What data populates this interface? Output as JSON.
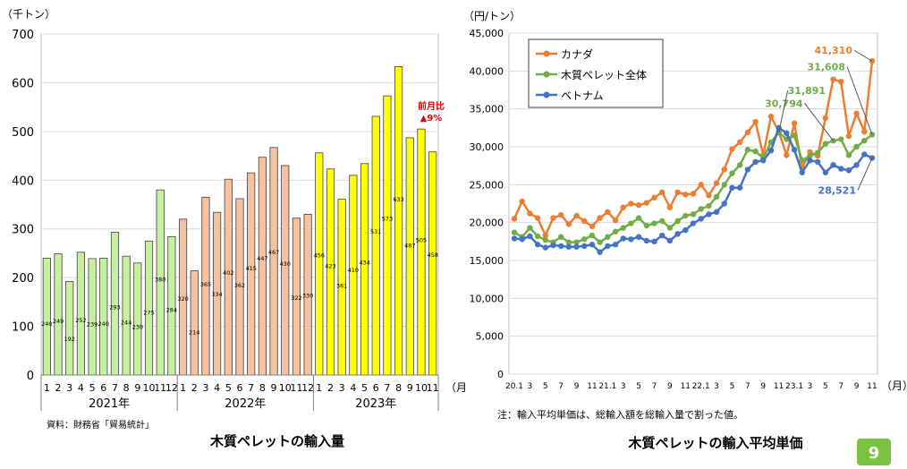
{
  "chart_data": [
    {
      "type": "bar",
      "title": "木質ペレットの輸入量",
      "ylabel": "（千トン）",
      "xlabel": "（月）",
      "ylim": [
        0,
        700
      ],
      "yticks": [
        "0",
        "100",
        "200",
        "300",
        "400",
        "500",
        "600",
        "700"
      ],
      "grid": true,
      "categories": [
        "1",
        "2",
        "3",
        "4",
        "5",
        "6",
        "7",
        "8",
        "9",
        "10",
        "11",
        "12",
        "1",
        "2",
        "3",
        "4",
        "5",
        "6",
        "7",
        "8",
        "9",
        "10",
        "11",
        "12",
        "1",
        "2",
        "3",
        "4",
        "5",
        "6",
        "7",
        "8",
        "9",
        "10",
        "11"
      ],
      "values": [
        240,
        249,
        192,
        252,
        239,
        240,
        293,
        244,
        230,
        275,
        380,
        284,
        320,
        214,
        365,
        334,
        402,
        362,
        415,
        447,
        467,
        430,
        322,
        330,
        456,
        423,
        361,
        410,
        434,
        531,
        573,
        633,
        487,
        505,
        458
      ],
      "groups": [
        {
          "label": "2021年",
          "start": 0,
          "end": 11,
          "color": "#c6efa0"
        },
        {
          "label": "2022年",
          "start": 12,
          "end": 23,
          "color": "#f6c19f"
        },
        {
          "label": "2023年",
          "start": 24,
          "end": 34,
          "color": "#ffff00"
        }
      ],
      "annotation": {
        "line1": "前月比",
        "line2": "▲9%",
        "color": "#e00000"
      },
      "source": "資料：財務省「貿易統計」"
    },
    {
      "type": "line",
      "title": "木質ペレットの輸入平均単価",
      "ylabel": "（円/トン）",
      "xlabel": "（月）",
      "ylim": [
        0,
        45000
      ],
      "yticks": [
        "0",
        "5,000",
        "10,000",
        "15,000",
        "20,000",
        "25,000",
        "30,000",
        "35,000",
        "40,000",
        "45,000"
      ],
      "grid": true,
      "legend_position": "top-left",
      "xticks": [
        "20.1",
        "",
        "3",
        "",
        "5",
        "",
        "7",
        "",
        "9",
        "",
        "11",
        "",
        "21.1",
        "",
        "3",
        "",
        "5",
        "",
        "7",
        "",
        "9",
        "",
        "11",
        "",
        "22.1",
        "",
        "3",
        "",
        "5",
        "",
        "7",
        "",
        "9",
        "",
        "11",
        "",
        "23.1",
        "",
        "3",
        "",
        "5",
        "",
        "7",
        "",
        "9",
        "",
        "11"
      ],
      "series": [
        {
          "name": "カナダ",
          "color": "#ed7d31",
          "values": [
            20500,
            22800,
            21200,
            20600,
            18300,
            20600,
            21000,
            19800,
            20900,
            20200,
            19500,
            20600,
            21400,
            20300,
            22000,
            22500,
            22300,
            22600,
            23300,
            24000,
            22000,
            24000,
            23700,
            23800,
            25000,
            23600,
            25200,
            27000,
            29700,
            30600,
            31900,
            33300,
            28900,
            34000,
            32000,
            28900,
            33100,
            27200,
            29300,
            28800,
            33800,
            38900,
            38600,
            31400,
            34400,
            32000,
            41310
          ]
        },
        {
          "name": "木質ペレット全体",
          "color": "#70ad47",
          "values": [
            18700,
            18100,
            19300,
            18200,
            17700,
            17400,
            18100,
            17400,
            17400,
            17800,
            18300,
            17400,
            18100,
            18800,
            19300,
            19900,
            20600,
            19600,
            19900,
            20200,
            19300,
            20200,
            20900,
            21100,
            21800,
            22200,
            23400,
            25000,
            26500,
            27600,
            29600,
            29400,
            28500,
            30600,
            31891,
            31000,
            31500,
            28200,
            28800,
            29200,
            30400,
            30794,
            31000,
            28900,
            30000,
            30800,
            31608
          ]
        },
        {
          "name": "ベトナム",
          "color": "#4472c4",
          "values": [
            17900,
            17800,
            18200,
            17100,
            16700,
            17000,
            16900,
            16800,
            16800,
            16900,
            17100,
            16100,
            16900,
            17100,
            17900,
            17800,
            18100,
            17600,
            17500,
            18300,
            17600,
            18500,
            19000,
            19900,
            20500,
            21100,
            21400,
            22500,
            24600,
            24600,
            27000,
            28000,
            28200,
            29500,
            32500,
            31800,
            29600,
            26600,
            28200,
            28000,
            26600,
            27600,
            27100,
            26900,
            27600,
            29000,
            28521
          ]
        }
      ],
      "point_labels": [
        {
          "series": 0,
          "index": 46,
          "text": "41,310"
        },
        {
          "series": 1,
          "index": 46,
          "text": "31,608"
        },
        {
          "series": 1,
          "index": 41,
          "text": "30,794"
        },
        {
          "series": 1,
          "index": 34,
          "text": "31,891"
        },
        {
          "series": 2,
          "index": 46,
          "text": "28,521"
        }
      ],
      "note": "注：輸入平均単価は、総輸入額を総輸入量で割った値。"
    }
  ],
  "page_number": "9"
}
